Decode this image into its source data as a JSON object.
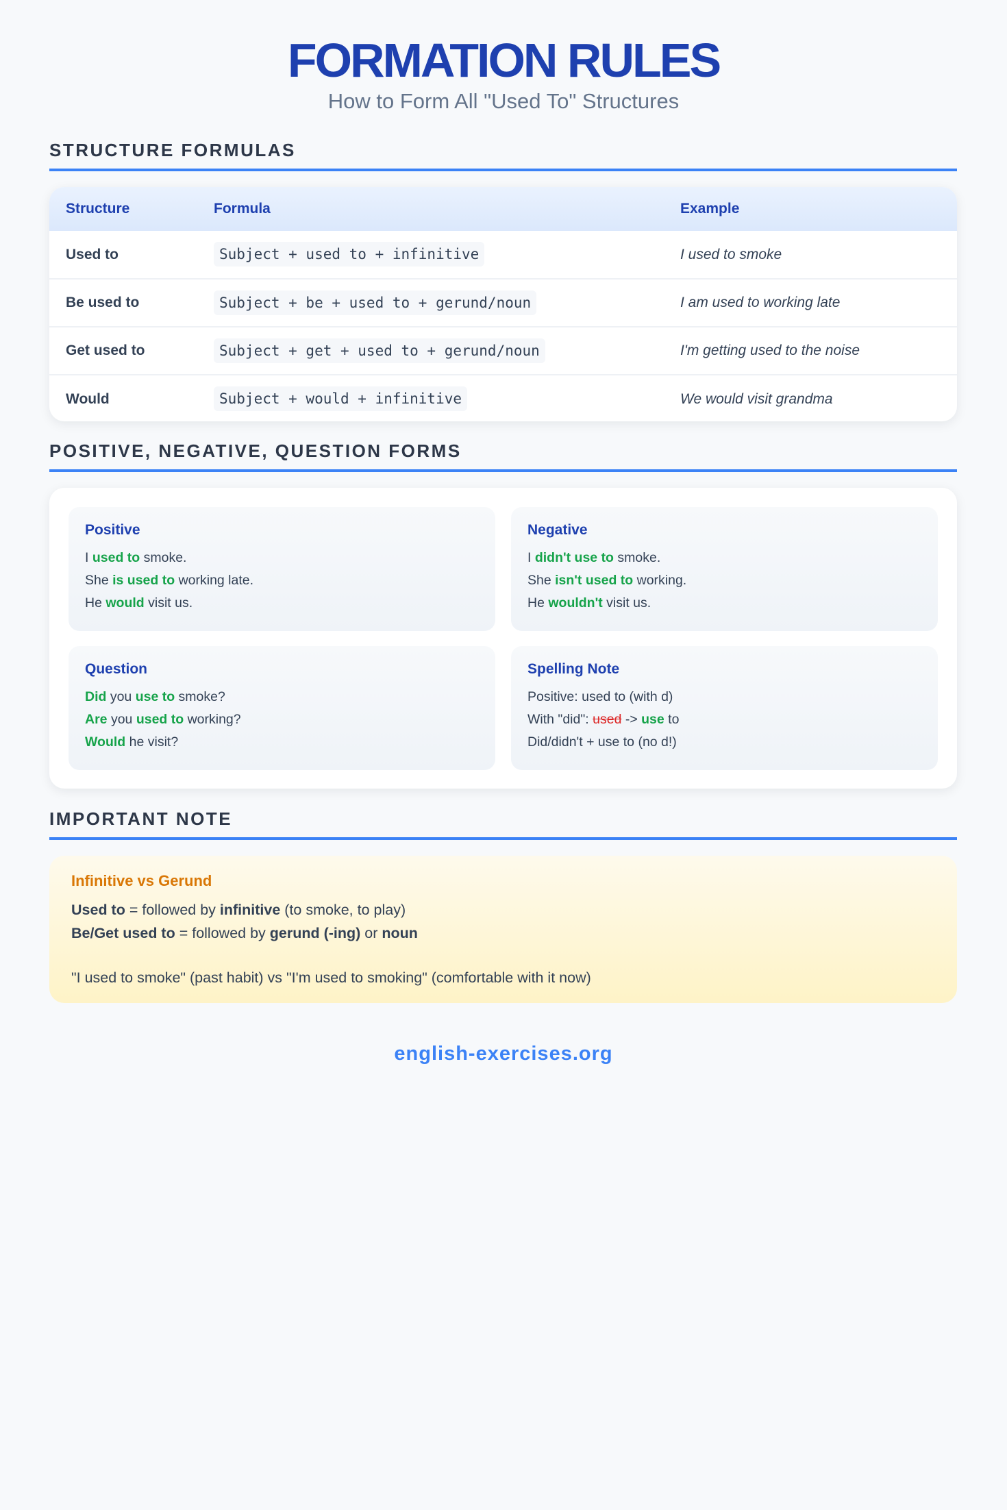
{
  "header": {
    "title": "FORMATION RULES",
    "subtitle": "How to Form All \"Used To\" Structures"
  },
  "sections": {
    "formulas": "STRUCTURE FORMULAS",
    "forms": "POSITIVE, NEGATIVE, QUESTION FORMS",
    "note": "IMPORTANT NOTE"
  },
  "table": {
    "headers": [
      "Structure",
      "Formula",
      "Example"
    ],
    "rows": [
      {
        "structure": "Used to",
        "formula": "Subject + used to + infinitive",
        "example": "I used to smoke"
      },
      {
        "structure": "Be used to",
        "formula": "Subject + be + used to + gerund/noun",
        "example": "I am used to working late"
      },
      {
        "structure": "Get used to",
        "formula": "Subject + get + used to + gerund/noun",
        "example": "I'm getting used to the noise"
      },
      {
        "structure": "Would",
        "formula": "Subject + would + infinitive",
        "example": "We would visit grandma"
      }
    ]
  },
  "forms": {
    "positive": {
      "title": "Positive",
      "l1": [
        "I ",
        "used to",
        " smoke."
      ],
      "l2": [
        "She ",
        "is used to",
        " working late."
      ],
      "l3": [
        "He ",
        "would",
        " visit us."
      ]
    },
    "negative": {
      "title": "Negative",
      "l1": [
        "I ",
        "didn't use to",
        " smoke."
      ],
      "l2": [
        "She ",
        "isn't used to",
        " working."
      ],
      "l3": [
        "He ",
        "wouldn't",
        " visit us."
      ]
    },
    "question": {
      "title": "Question",
      "l1": [
        "Did",
        " you ",
        "use to",
        " smoke?"
      ],
      "l2": [
        "Are",
        " you ",
        "used to",
        " working?"
      ],
      "l3": [
        "Would",
        " he visit?"
      ]
    },
    "spelling": {
      "title": "Spelling Note",
      "l1": "Positive: used to (with d)",
      "l2": [
        "With \"did\": ",
        "used",
        " -> ",
        "use",
        " to"
      ],
      "l3": "Did/didn't + use to (no d!)"
    }
  },
  "note": {
    "title": "Infinitive vs Gerund",
    "l1": [
      "Used to",
      " = followed by ",
      "infinitive",
      " (to smoke, to play)"
    ],
    "l2": [
      "Be/Get used to",
      " = followed by ",
      "gerund (-ing)",
      " or ",
      "noun"
    ],
    "l3": "\"I used to smoke\" (past habit) vs \"I'm used to smoking\" (comfortable with it now)"
  },
  "footer": "english-exercises.org",
  "colors": {
    "accent": "#3b82f6",
    "heading": "#1e40af",
    "highlight": "#16a34a",
    "strike": "#dc2626",
    "note_title": "#d97706"
  }
}
